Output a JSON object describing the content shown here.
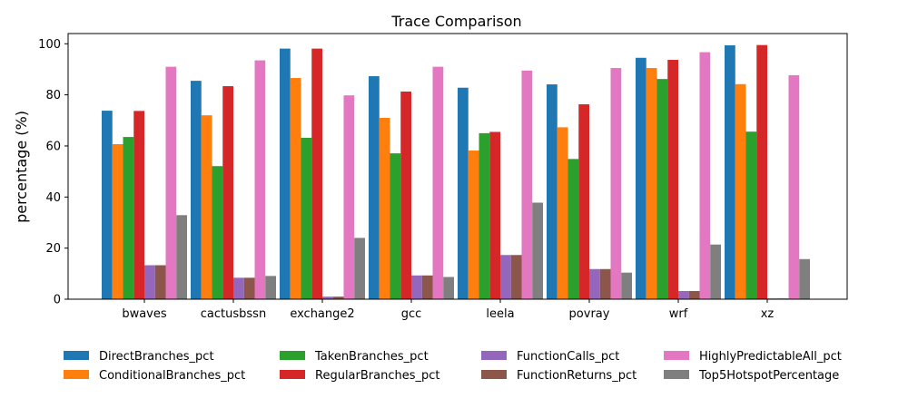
{
  "chart_data": {
    "type": "bar",
    "title": "Trace Comparison",
    "xlabel": "",
    "ylabel": "percentage (%)",
    "ylim": [
      0,
      104
    ],
    "yticks": [
      0,
      20,
      40,
      60,
      80,
      100
    ],
    "grid": false,
    "legend_position": "bottom",
    "categories": [
      "bwaves",
      "cactusbssn",
      "exchange2",
      "gcc",
      "leela",
      "povray",
      "wrf",
      "xz"
    ],
    "series": [
      {
        "name": "DirectBranches_pct",
        "color": "#1f77b4",
        "values": [
          73.8,
          85.5,
          98.1,
          87.3,
          82.8,
          84.1,
          94.5,
          99.4
        ]
      },
      {
        "name": "ConditionalBranches_pct",
        "color": "#ff7f0e",
        "values": [
          60.7,
          72.0,
          86.6,
          71.0,
          58.2,
          67.3,
          90.5,
          84.2
        ]
      },
      {
        "name": "TakenBranches_pct",
        "color": "#2ca02c",
        "values": [
          63.5,
          52.1,
          63.2,
          57.1,
          65.0,
          54.9,
          86.2,
          65.6
        ]
      },
      {
        "name": "RegularBranches_pct",
        "color": "#d62728",
        "values": [
          73.7,
          83.4,
          98.1,
          81.3,
          65.5,
          76.3,
          93.7,
          99.5
        ]
      },
      {
        "name": "FunctionCalls_pct",
        "color": "#9467bd",
        "values": [
          13.3,
          8.4,
          1.0,
          9.3,
          17.3,
          11.8,
          3.2,
          0.3
        ]
      },
      {
        "name": "FunctionReturns_pct",
        "color": "#8c564b",
        "values": [
          13.3,
          8.4,
          1.0,
          9.3,
          17.3,
          11.8,
          3.2,
          0.3
        ]
      },
      {
        "name": "HighlyPredictableAll_pct",
        "color": "#e377c2",
        "values": [
          91.0,
          93.5,
          79.8,
          91.0,
          89.5,
          90.5,
          96.7,
          87.7
        ]
      },
      {
        "name": "Top5HotspotPercentage",
        "color": "#7f7f7f",
        "values": [
          32.9,
          9.1,
          24.0,
          8.7,
          37.8,
          10.4,
          21.4,
          15.7
        ]
      }
    ]
  }
}
